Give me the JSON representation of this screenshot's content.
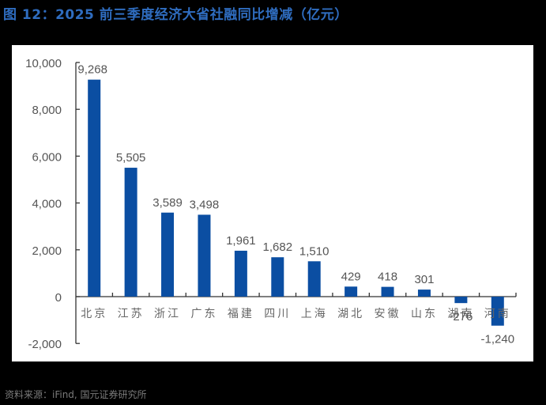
{
  "title": "图 12：2025 前三季度经济大省社融同比增减（亿元）",
  "source": "资料来源：iFind, 国元证券研究所",
  "colors": {
    "bar": "#0b4ea2",
    "axis": "#333333",
    "text": "#555555",
    "title": "#2f6dc0",
    "background": "#000000",
    "plot_background": "#ffffff"
  },
  "chart_data": {
    "type": "bar",
    "title": "图 12：2025 前三季度经济大省社融同比增减（亿元）",
    "xlabel": "",
    "ylabel": "",
    "categories": [
      "北京",
      "江苏",
      "浙江",
      "广东",
      "福建",
      "四川",
      "上海",
      "湖北",
      "安徽",
      "山东",
      "湖南",
      "河南"
    ],
    "values": [
      9268,
      5505,
      3589,
      3498,
      1961,
      1682,
      1510,
      429,
      418,
      301,
      -276,
      -1240
    ],
    "value_labels": [
      "9,268",
      "5,505",
      "3,589",
      "3,498",
      "1,961",
      "1,682",
      "1,510",
      "429",
      "418",
      "301",
      "-276",
      "-1,240"
    ],
    "ylim": [
      -2000,
      10000
    ],
    "yticks": [
      -2000,
      0,
      2000,
      4000,
      6000,
      8000,
      10000
    ],
    "ytick_labels": [
      "-2,000",
      "0",
      "2,000",
      "4,000",
      "6,000",
      "8,000",
      "10,000"
    ],
    "grid": false,
    "legend": null
  }
}
